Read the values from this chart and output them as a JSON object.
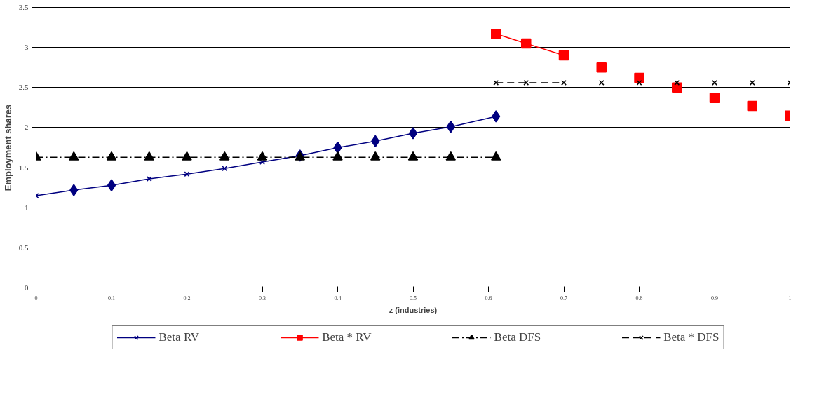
{
  "chart_data": {
    "type": "line",
    "xlabel": "z (industries)",
    "ylabel": "Employment shares",
    "xlim": [
      0,
      1
    ],
    "ylim": [
      0,
      3.5
    ],
    "xticks": [
      0,
      0.1,
      0.2,
      0.3,
      0.4,
      0.5,
      0.6,
      0.7,
      0.8,
      0.9,
      1
    ],
    "yticks": [
      0,
      0.5,
      1,
      1.5,
      2,
      2.5,
      3,
      3.5
    ],
    "grid": "y",
    "legend": "bottom",
    "series": [
      {
        "name": "Beta RV",
        "color": "#000080",
        "marker": "cross",
        "line_style": "solid",
        "x": [
          0,
          0.05,
          0.1,
          0.15,
          0.2,
          0.25,
          0.3,
          0.35,
          0.4,
          0.45,
          0.5,
          0.55,
          0.61
        ],
        "values": [
          1.15,
          1.22,
          1.28,
          1.36,
          1.42,
          1.49,
          1.57,
          1.65,
          1.75,
          1.83,
          1.93,
          2.01,
          2.14
        ]
      },
      {
        "type": "scatter",
        "color": "#000080",
        "marker": "diamond",
        "x": [
          0.05,
          0.1,
          0.35,
          0.4,
          0.45,
          0.5,
          0.55,
          0.61
        ],
        "values": [
          1.22,
          1.28,
          1.65,
          1.75,
          1.83,
          1.93,
          2.01,
          2.14
        ]
      },
      {
        "name": "Beta * RV",
        "color": "#ff0000",
        "marker": "square",
        "line_style": "solid",
        "x": [
          0.61,
          0.65,
          0.7
        ],
        "values": [
          3.17,
          3.05,
          2.9
        ]
      },
      {
        "type": "scatter",
        "color": "#ff0000",
        "marker": "square",
        "x": [
          0.75,
          0.8,
          0.85,
          0.9,
          0.95,
          1.0
        ],
        "values": [
          2.75,
          2.62,
          2.5,
          2.37,
          2.27,
          2.15
        ]
      },
      {
        "name": "Beta DFS",
        "color": "#000000",
        "marker": "triangle",
        "line_style": "dashdot",
        "x": [
          0,
          0.05,
          0.1,
          0.15,
          0.2,
          0.25,
          0.3,
          0.35,
          0.4,
          0.45,
          0.5,
          0.55,
          0.61
        ],
        "values": [
          1.63,
          1.63,
          1.63,
          1.63,
          1.63,
          1.63,
          1.63,
          1.63,
          1.63,
          1.63,
          1.63,
          1.63,
          1.63
        ]
      },
      {
        "name": "Beta * DFS",
        "color": "#000000",
        "marker": "cross",
        "line_style": "dashed",
        "x": [
          0.61,
          0.65,
          0.7
        ],
        "values": [
          2.56,
          2.56,
          2.56
        ]
      },
      {
        "type": "scatter",
        "color": "#000000",
        "marker": "cross",
        "x": [
          0.75,
          0.8,
          0.85,
          0.9,
          0.95,
          1.0
        ],
        "values": [
          2.56,
          2.56,
          2.56,
          2.56,
          2.56,
          2.56
        ]
      }
    ]
  }
}
